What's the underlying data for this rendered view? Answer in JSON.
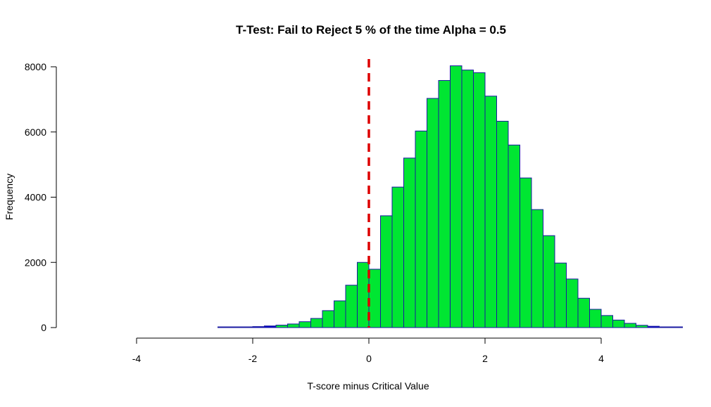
{
  "chart_data": {
    "type": "bar",
    "title": "T-Test: Fail to Reject 5 % of the time Alpha =  0.5",
    "xlabel": "T-score minus Critical Value",
    "ylabel": "Frequency",
    "xlim": [
      -4,
      5.4
    ],
    "ylim": [
      0,
      8000
    ],
    "x_ticks": [
      "-4",
      "-2",
      "0",
      "2",
      "4"
    ],
    "y_ticks": [
      "0",
      "2000",
      "4000",
      "6000",
      "8000"
    ],
    "bin_width": 0.2,
    "bin_start": -2.6,
    "reference_line": {
      "x": 0,
      "color": "#dd0000",
      "style": "dashed"
    },
    "colors": {
      "reject_fill": "#00e632",
      "fail_fill": "#0000cc",
      "border": "#1a1aa0",
      "axis": "#000000"
    },
    "bins": [
      {
        "start": -2.6,
        "end": -2.4,
        "value": 6,
        "group": "fail"
      },
      {
        "start": -2.4,
        "end": -2.2,
        "value": 12,
        "group": "fail"
      },
      {
        "start": -2.2,
        "end": -2.0,
        "value": 18,
        "group": "fail"
      },
      {
        "start": -2.0,
        "end": -1.8,
        "value": 30,
        "group": "fail"
      },
      {
        "start": -1.8,
        "end": -1.6,
        "value": 50,
        "group": "fail"
      },
      {
        "start": -1.6,
        "end": -1.4,
        "value": 75,
        "group": "reject"
      },
      {
        "start": -1.4,
        "end": -1.2,
        "value": 110,
        "group": "reject"
      },
      {
        "start": -1.2,
        "end": -1.0,
        "value": 180,
        "group": "reject"
      },
      {
        "start": -1.0,
        "end": -0.8,
        "value": 280,
        "group": "reject"
      },
      {
        "start": -0.8,
        "end": -0.6,
        "value": 520,
        "group": "reject"
      },
      {
        "start": -0.6,
        "end": -0.4,
        "value": 820,
        "group": "reject"
      },
      {
        "start": -0.4,
        "end": -0.2,
        "value": 1300,
        "group": "reject"
      },
      {
        "start": -0.2,
        "end": 0.0,
        "value": 2000,
        "group": "reject"
      },
      {
        "start": 0.0,
        "end": 0.2,
        "value": 1790,
        "group": "reject"
      },
      {
        "start": 0.2,
        "end": 0.4,
        "value": 3430,
        "group": "reject"
      },
      {
        "start": 0.4,
        "end": 0.6,
        "value": 4310,
        "group": "reject"
      },
      {
        "start": 0.6,
        "end": 0.8,
        "value": 5200,
        "group": "reject"
      },
      {
        "start": 0.8,
        "end": 1.0,
        "value": 6030,
        "group": "reject"
      },
      {
        "start": 1.0,
        "end": 1.2,
        "value": 7030,
        "group": "reject"
      },
      {
        "start": 1.2,
        "end": 1.4,
        "value": 7580,
        "group": "reject"
      },
      {
        "start": 1.4,
        "end": 1.6,
        "value": 8030,
        "group": "reject"
      },
      {
        "start": 1.6,
        "end": 1.8,
        "value": 7900,
        "group": "reject"
      },
      {
        "start": 1.8,
        "end": 2.0,
        "value": 7820,
        "group": "reject"
      },
      {
        "start": 2.0,
        "end": 2.2,
        "value": 7100,
        "group": "reject"
      },
      {
        "start": 2.2,
        "end": 2.4,
        "value": 6330,
        "group": "reject"
      },
      {
        "start": 2.4,
        "end": 2.6,
        "value": 5600,
        "group": "reject"
      },
      {
        "start": 2.6,
        "end": 2.8,
        "value": 4590,
        "group": "reject"
      },
      {
        "start": 2.8,
        "end": 3.0,
        "value": 3620,
        "group": "reject"
      },
      {
        "start": 3.0,
        "end": 3.2,
        "value": 2820,
        "group": "reject"
      },
      {
        "start": 3.2,
        "end": 3.4,
        "value": 1980,
        "group": "reject"
      },
      {
        "start": 3.4,
        "end": 3.6,
        "value": 1490,
        "group": "reject"
      },
      {
        "start": 3.6,
        "end": 3.8,
        "value": 900,
        "group": "reject"
      },
      {
        "start": 3.8,
        "end": 4.0,
        "value": 560,
        "group": "reject"
      },
      {
        "start": 4.0,
        "end": 4.2,
        "value": 370,
        "group": "reject"
      },
      {
        "start": 4.2,
        "end": 4.4,
        "value": 230,
        "group": "reject"
      },
      {
        "start": 4.4,
        "end": 4.6,
        "value": 130,
        "group": "reject"
      },
      {
        "start": 4.6,
        "end": 4.8,
        "value": 70,
        "group": "reject"
      },
      {
        "start": 4.8,
        "end": 5.0,
        "value": 40,
        "group": "fail"
      },
      {
        "start": 5.0,
        "end": 5.2,
        "value": 20,
        "group": "fail"
      },
      {
        "start": 5.2,
        "end": 5.4,
        "value": 10,
        "group": "fail"
      }
    ]
  }
}
